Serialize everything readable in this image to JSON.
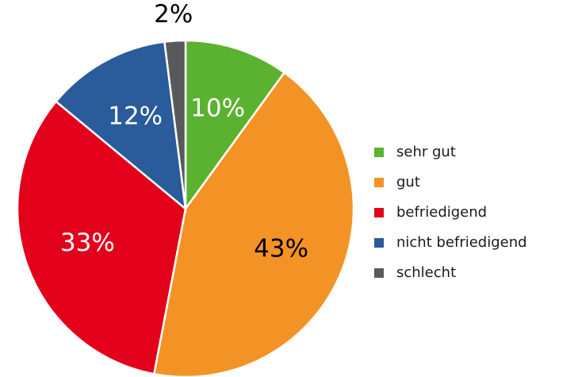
{
  "chart_data": {
    "type": "pie",
    "categories": [
      "sehr gut",
      "gut",
      "befriedigend",
      "nicht befriedigend",
      "schlecht"
    ],
    "values": [
      10,
      43,
      33,
      12,
      2
    ],
    "value_labels": [
      "10%",
      "43%",
      "33%",
      "12%",
      "2%"
    ],
    "colors": [
      "#5bb130",
      "#f39325",
      "#e3001b",
      "#2a5b9b",
      "#58595b"
    ],
    "label_colors": [
      "#ffffff",
      "#000000",
      "#ffffff",
      "#ffffff",
      "#000000"
    ],
    "legend": "right"
  }
}
